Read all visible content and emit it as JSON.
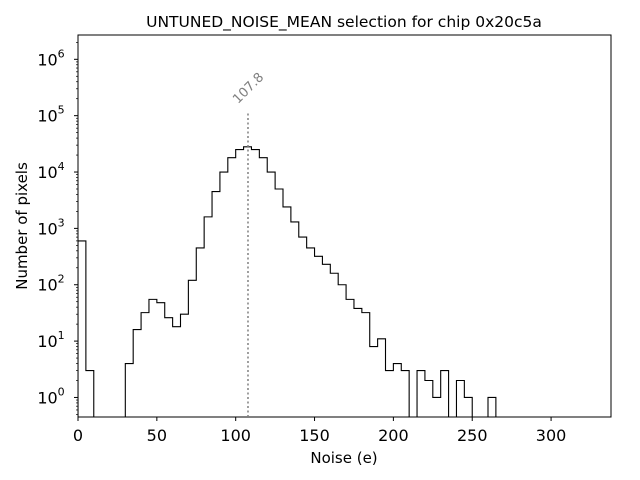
{
  "chart_data": {
    "type": "histogram",
    "title": "UNTUNED_NOISE_MEAN selection for chip 0x20c5a",
    "xlabel": "Noise (e)",
    "ylabel": "Number of pixels",
    "xlim": [
      0,
      338
    ],
    "ylim": [
      0.45,
      2700000
    ],
    "yscale": "log",
    "grid": false,
    "x_ticks": [
      0,
      50,
      100,
      150,
      200,
      250,
      300
    ],
    "x_tick_labels": [
      "0",
      "50",
      "100",
      "150",
      "200",
      "250",
      "300"
    ],
    "y_ticks": [
      1,
      10,
      100,
      1000,
      10000,
      100000,
      1000000
    ],
    "y_tick_labels": [
      {
        "base": "10",
        "exp": "0"
      },
      {
        "base": "10",
        "exp": "1"
      },
      {
        "base": "10",
        "exp": "2"
      },
      {
        "base": "10",
        "exp": "3"
      },
      {
        "base": "10",
        "exp": "4"
      },
      {
        "base": "10",
        "exp": "5"
      },
      {
        "base": "10",
        "exp": "6"
      }
    ],
    "bin_width": 5,
    "bin_start": 0,
    "counts": [
      600,
      3,
      0,
      0,
      0,
      0,
      4,
      16,
      32,
      55,
      48,
      26,
      18,
      30,
      120,
      450,
      1600,
      4500,
      10000,
      18000,
      25000,
      28000,
      25000,
      18000,
      10000,
      5000,
      2400,
      1300,
      700,
      450,
      320,
      230,
      160,
      100,
      55,
      38,
      32,
      8,
      11,
      3,
      4,
      3,
      0,
      3,
      2,
      1,
      3,
      0,
      2,
      1,
      0,
      0,
      1
    ],
    "marker": {
      "value": 107.8,
      "label": "107.8",
      "y_top": 120000,
      "color": "#7f7f7f"
    },
    "line_color": "#000000"
  }
}
